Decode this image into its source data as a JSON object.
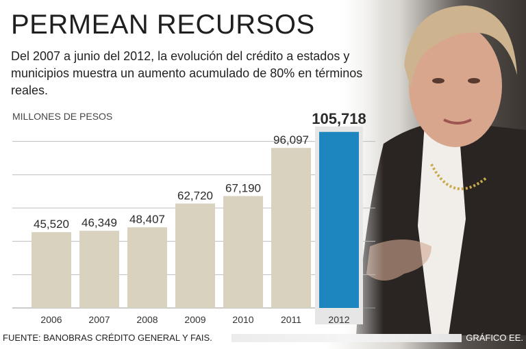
{
  "title": "PERMEAN RECURSOS",
  "subtitle": "Del 2007 a junio del 2012, la evolución del crédito a estados y municipios muestra un aumento acumulado de 80% en términos reales.",
  "footer": {
    "source": "FUENTE: BANOBRAS CRÉDITO GENERAL Y FAIS.",
    "credit": "GRÁFICO EE."
  },
  "colors": {
    "bar": "#d8d2bf",
    "highlight": "#1d86bf",
    "grid": "#bdbdbd"
  },
  "chart_data": {
    "type": "bar",
    "title": "PERMEAN RECURSOS",
    "ylabel": "MILLONES DE PESOS",
    "xlabel": "",
    "ylim": [
      0,
      120000
    ],
    "grid": true,
    "categories": [
      "2006",
      "2007",
      "2008",
      "2009",
      "2010",
      "2011",
      "2012"
    ],
    "values": [
      45520,
      46349,
      48407,
      62720,
      67190,
      96097,
      105718
    ],
    "value_labels": [
      "45,520",
      "46,349",
      "48,407",
      "62,720",
      "67,190",
      "96,097",
      "105,718"
    ],
    "highlight_index": 6
  }
}
